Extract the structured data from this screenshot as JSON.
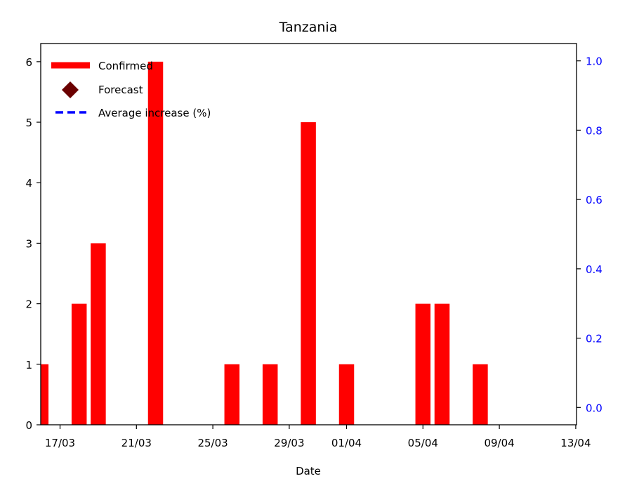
{
  "chart_data": {
    "type": "bar",
    "title": "Tanzania",
    "xlabel": "Date",
    "ylabel": "",
    "y2label": "",
    "x_dates": [
      "15/03",
      "16/03",
      "17/03",
      "18/03",
      "19/03",
      "20/03",
      "21/03",
      "22/03",
      "23/03",
      "24/03",
      "25/03",
      "26/03",
      "27/03",
      "28/03",
      "29/03",
      "30/03",
      "31/03",
      "01/04",
      "02/04",
      "03/04",
      "04/04",
      "05/04",
      "06/04",
      "07/04",
      "08/04",
      "09/04",
      "10/04",
      "11/04",
      "12/04",
      "13/04"
    ],
    "x_ticks": [
      "17/03",
      "21/03",
      "25/03",
      "29/03",
      "01/04",
      "05/04",
      "09/04",
      "13/04"
    ],
    "ylim": [
      0,
      6.3
    ],
    "y_ticks": [
      0,
      1,
      2,
      3,
      4,
      5,
      6
    ],
    "y2lim": [
      -0.05,
      1.05
    ],
    "y2_ticks": [
      "0.0",
      "0.2",
      "0.4",
      "0.6",
      "0.8",
      "1.0"
    ],
    "series": [
      {
        "name": "Confirmed",
        "kind": "bar",
        "color": "#ff0000",
        "points": [
          {
            "date": "16/03",
            "value": 1
          },
          {
            "date": "18/03",
            "value": 2
          },
          {
            "date": "19/03",
            "value": 3
          },
          {
            "date": "22/03",
            "value": 6
          },
          {
            "date": "26/03",
            "value": 1
          },
          {
            "date": "28/03",
            "value": 1
          },
          {
            "date": "30/03",
            "value": 5
          },
          {
            "date": "01/04",
            "value": 1
          },
          {
            "date": "05/04",
            "value": 2
          },
          {
            "date": "06/04",
            "value": 2
          },
          {
            "date": "08/04",
            "value": 1
          }
        ]
      },
      {
        "name": "Forecast",
        "kind": "marker",
        "color": "#6b0000",
        "points": []
      },
      {
        "name": "Average increase (%)",
        "kind": "dashed-line",
        "color": "#0000ff",
        "axis": "right",
        "points": []
      }
    ],
    "legend_position": "top-left",
    "grid": false,
    "right_axis_color": "#0000ff"
  }
}
